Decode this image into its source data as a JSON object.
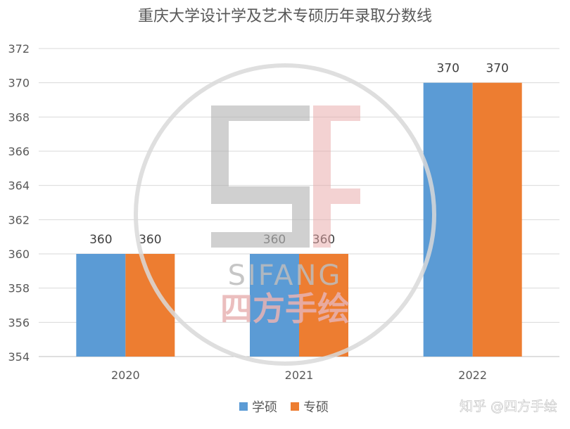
{
  "chart_data": {
    "type": "bar",
    "title": "重庆大学设计学及艺术专硕历年录取分数线",
    "categories": [
      "2020",
      "2021",
      "2022"
    ],
    "series": [
      {
        "name": "学硕",
        "values": [
          360,
          360,
          370
        ],
        "color": "#5B9BD5"
      },
      {
        "name": "专硕",
        "values": [
          360,
          360,
          370
        ],
        "color": "#ED7D31"
      }
    ],
    "ylim": [
      354,
      372
    ],
    "yticks": [
      "354",
      "356",
      "358",
      "360",
      "362",
      "364",
      "366",
      "368",
      "370",
      "372"
    ],
    "grid": true,
    "legend_position": "bottom",
    "data_labels": [
      [
        "360",
        "360"
      ],
      [
        "360",
        "360"
      ],
      [
        "370",
        "370"
      ]
    ]
  },
  "watermark": {
    "brand_latin": "SIFANG",
    "brand_cn": "四方手绘",
    "logo": "SF"
  },
  "credit": "知乎 @四方手绘"
}
